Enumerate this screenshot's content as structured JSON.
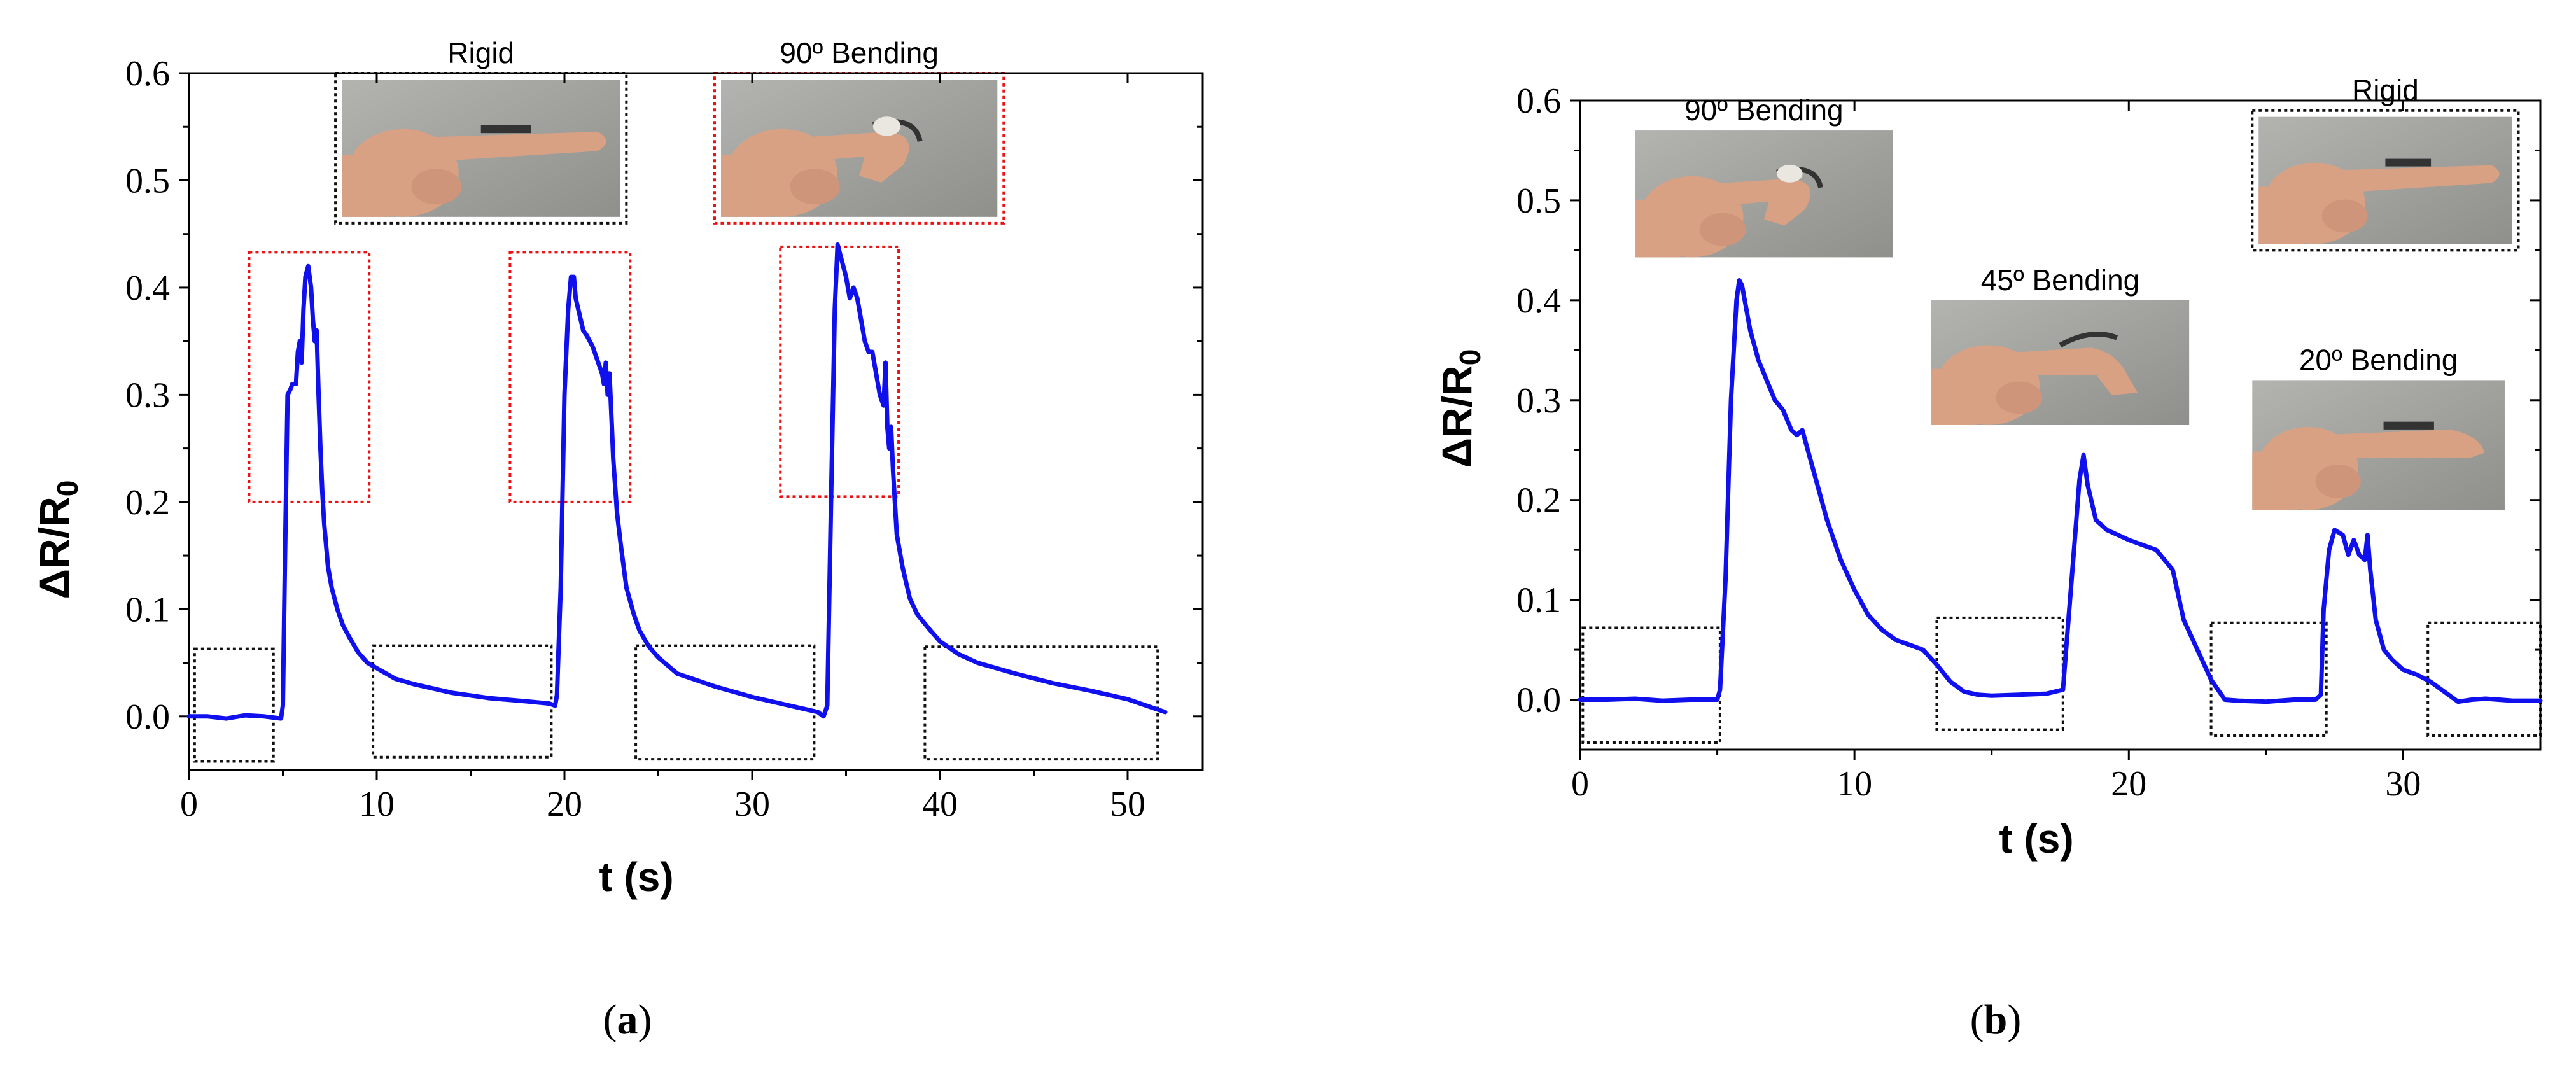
{
  "chart_data": [
    {
      "id": "a",
      "type": "line",
      "panel_label": "a",
      "xlabel": "t (s)",
      "ylabel_main": "ΔR/R",
      "ylabel_sub": "0",
      "xlim": [
        0,
        54
      ],
      "ylim": [
        -0.05,
        0.6
      ],
      "xticks": [
        0,
        10,
        20,
        30,
        40,
        50
      ],
      "yticks": [
        0.0,
        0.1,
        0.2,
        0.3,
        0.4,
        0.5,
        0.6
      ],
      "ytick_labels": [
        "0.0",
        "0.1",
        "0.2",
        "0.3",
        "0.4",
        "0.5",
        "0.6"
      ],
      "series": [
        {
          "name": "ΔR/R0",
          "color": "#1010ee",
          "x": [
            0,
            1,
            2,
            3,
            4,
            4.9,
            5.0,
            5.1,
            5.25,
            5.4,
            5.5,
            5.7,
            5.8,
            5.9,
            6.0,
            6.1,
            6.2,
            6.35,
            6.5,
            6.6,
            6.7,
            6.8,
            6.9,
            7.0,
            7.1,
            7.2,
            7.3,
            7.4,
            7.6,
            7.9,
            8.2,
            8.5,
            9.0,
            9.5,
            10.0,
            11.0,
            12.0,
            14.0,
            16.0,
            18.0,
            19.2,
            19.5,
            19.6,
            19.8,
            20.0,
            20.2,
            20.35,
            20.5,
            20.6,
            20.8,
            21.0,
            21.2,
            21.5,
            21.8,
            22.0,
            22.1,
            22.2,
            22.3,
            22.4,
            22.5,
            22.6,
            22.8,
            23.0,
            23.3,
            23.7,
            24.0,
            24.5,
            25.0,
            26.0,
            28.0,
            30.0,
            32.0,
            33.5,
            33.8,
            34.0,
            34.2,
            34.4,
            34.55,
            34.7,
            34.85,
            35.0,
            35.2,
            35.4,
            35.6,
            35.8,
            36.0,
            36.2,
            36.4,
            36.6,
            36.8,
            37.0,
            37.1,
            37.2,
            37.3,
            37.4,
            37.5,
            37.7,
            38.0,
            38.4,
            38.8,
            39.5,
            40.0,
            41.0,
            42.0,
            44.0,
            46.0,
            48.0,
            50.0,
            51.0,
            52.0
          ],
          "y": [
            0.0,
            0.0,
            -0.002,
            0.001,
            0.0,
            -0.002,
            0.01,
            0.13,
            0.3,
            0.305,
            0.31,
            0.31,
            0.34,
            0.35,
            0.33,
            0.38,
            0.41,
            0.42,
            0.4,
            0.37,
            0.35,
            0.36,
            0.3,
            0.25,
            0.21,
            0.18,
            0.16,
            0.14,
            0.12,
            0.1,
            0.085,
            0.075,
            0.06,
            0.05,
            0.045,
            0.035,
            0.03,
            0.022,
            0.017,
            0.014,
            0.012,
            0.01,
            0.02,
            0.12,
            0.3,
            0.38,
            0.41,
            0.41,
            0.39,
            0.375,
            0.36,
            0.355,
            0.345,
            0.33,
            0.32,
            0.31,
            0.33,
            0.3,
            0.32,
            0.28,
            0.24,
            0.19,
            0.16,
            0.12,
            0.095,
            0.08,
            0.065,
            0.055,
            0.04,
            0.028,
            0.018,
            0.01,
            0.004,
            0.0,
            0.01,
            0.2,
            0.38,
            0.44,
            0.43,
            0.42,
            0.41,
            0.39,
            0.4,
            0.39,
            0.37,
            0.35,
            0.34,
            0.34,
            0.32,
            0.3,
            0.29,
            0.33,
            0.27,
            0.25,
            0.27,
            0.23,
            0.17,
            0.14,
            0.11,
            0.095,
            0.08,
            0.07,
            0.058,
            0.05,
            0.04,
            0.031,
            0.024,
            0.016,
            0.01,
            0.004
          ],
          "line_width": 3
        }
      ],
      "highlight_boxes": [
        {
          "kind": "baseline",
          "x": [
            0.3,
            4.5
          ],
          "y": [
            -0.042,
            0.063
          ]
        },
        {
          "kind": "peak",
          "x": [
            3.2,
            9.6
          ],
          "y": [
            0.2,
            0.433
          ]
        },
        {
          "kind": "baseline",
          "x": [
            9.8,
            19.3
          ],
          "y": [
            -0.038,
            0.066
          ]
        },
        {
          "kind": "peak",
          "x": [
            17.1,
            23.5
          ],
          "y": [
            0.2,
            0.433
          ]
        },
        {
          "kind": "baseline",
          "x": [
            23.8,
            33.3
          ],
          "y": [
            -0.04,
            0.066
          ]
        },
        {
          "kind": "peak",
          "x": [
            31.5,
            37.8
          ],
          "y": [
            0.205,
            0.438
          ]
        },
        {
          "kind": "baseline",
          "x": [
            39.2,
            51.6
          ],
          "y": [
            -0.04,
            0.065
          ]
        }
      ],
      "photo_insets": [
        {
          "caption": "Rigid",
          "pose": "rigid",
          "border": "black",
          "x": [
            7.8,
            23.3
          ],
          "y": [
            0.46,
            0.6
          ]
        },
        {
          "caption": "90º Bending",
          "pose": "bend90",
          "border": "red",
          "x": [
            28.0,
            43.4
          ],
          "y": [
            0.46,
            0.6
          ]
        }
      ]
    },
    {
      "id": "b",
      "type": "line",
      "panel_label": "b",
      "xlabel": "t (s)",
      "ylabel_main": "ΔR/R",
      "ylabel_sub": "0",
      "xlim": [
        0,
        35
      ],
      "ylim": [
        -0.05,
        0.6
      ],
      "xticks": [
        0,
        10,
        20,
        30
      ],
      "yticks": [
        0.0,
        0.1,
        0.2,
        0.3,
        0.4,
        0.5,
        0.6
      ],
      "ytick_labels": [
        "0.0",
        "0.1",
        "0.2",
        "0.3",
        "0.4",
        "0.5",
        "0.6"
      ],
      "series": [
        {
          "name": "ΔR/R0",
          "color": "#1010ee",
          "x": [
            0,
            1,
            2,
            3,
            4,
            5.0,
            5.1,
            5.3,
            5.5,
            5.7,
            5.8,
            5.9,
            6.0,
            6.2,
            6.5,
            6.8,
            7.1,
            7.4,
            7.7,
            7.9,
            8.1,
            8.3,
            8.6,
            9.0,
            9.5,
            10.0,
            10.5,
            11.0,
            11.5,
            12.0,
            12.5,
            13.0,
            13.5,
            14.0,
            14.5,
            15.0,
            16.0,
            17.0,
            17.6,
            17.8,
            18.0,
            18.2,
            18.35,
            18.5,
            18.8,
            19.2,
            19.6,
            20.0,
            20.5,
            21.0,
            21.3,
            21.6,
            22.0,
            22.5,
            23.0,
            23.5,
            24.0,
            25.0,
            26.0,
            26.8,
            27.0,
            27.1,
            27.3,
            27.5,
            27.8,
            28.0,
            28.2,
            28.4,
            28.6,
            28.7,
            28.8,
            29.0,
            29.3,
            29.6,
            30.0,
            30.5,
            31.0,
            31.5,
            32.0,
            32.5,
            33.0,
            34.0,
            35.0
          ],
          "y": [
            0.0,
            0.0,
            0.001,
            -0.001,
            0.0,
            0.0,
            0.01,
            0.12,
            0.3,
            0.4,
            0.42,
            0.415,
            0.4,
            0.37,
            0.34,
            0.32,
            0.3,
            0.29,
            0.27,
            0.265,
            0.27,
            0.25,
            0.22,
            0.18,
            0.14,
            0.11,
            0.085,
            0.07,
            0.06,
            0.055,
            0.05,
            0.035,
            0.018,
            0.008,
            0.005,
            0.004,
            0.005,
            0.006,
            0.01,
            0.08,
            0.15,
            0.22,
            0.245,
            0.215,
            0.18,
            0.17,
            0.165,
            0.16,
            0.155,
            0.15,
            0.14,
            0.13,
            0.08,
            0.05,
            0.02,
            0.0,
            -0.001,
            -0.002,
            0.0,
            0.0,
            0.005,
            0.09,
            0.15,
            0.17,
            0.165,
            0.145,
            0.16,
            0.145,
            0.14,
            0.165,
            0.13,
            0.08,
            0.05,
            0.04,
            0.03,
            0.025,
            0.018,
            0.008,
            -0.002,
            0.0,
            0.001,
            -0.001,
            -0.001
          ],
          "line_width": 3
        }
      ],
      "highlight_boxes": [
        {
          "kind": "baseline",
          "x": [
            0.1,
            5.1
          ],
          "y": [
            -0.043,
            0.072
          ]
        },
        {
          "kind": "baseline",
          "x": [
            13.0,
            17.6
          ],
          "y": [
            -0.03,
            0.082
          ]
        },
        {
          "kind": "baseline",
          "x": [
            23.0,
            27.2
          ],
          "y": [
            -0.036,
            0.077
          ]
        },
        {
          "kind": "baseline",
          "x": [
            30.9,
            35.0
          ],
          "y": [
            -0.036,
            0.077
          ]
        }
      ],
      "photo_insets": [
        {
          "caption": "90º Bending",
          "pose": "bend90",
          "border": "none",
          "x": [
            2.0,
            11.4
          ],
          "y": [
            0.443,
            0.57
          ]
        },
        {
          "caption": "45º Bending",
          "pose": "bend45",
          "border": "none",
          "x": [
            12.8,
            22.2
          ],
          "y": [
            0.275,
            0.4
          ]
        },
        {
          "caption": "Rigid",
          "pose": "rigid",
          "border": "black",
          "x": [
            24.5,
            34.2
          ],
          "y": [
            0.45,
            0.59
          ]
        },
        {
          "caption": "20º Bending",
          "pose": "bend20",
          "border": "none",
          "x": [
            24.5,
            33.7
          ],
          "y": [
            0.19,
            0.32
          ]
        }
      ]
    }
  ],
  "colors": {
    "line": "#1010ee",
    "red_box": "#ee1111",
    "black_box": "#111111",
    "photo_bg": "#a9aaa6",
    "skin": "#d9a184",
    "sensor": "#333333"
  }
}
